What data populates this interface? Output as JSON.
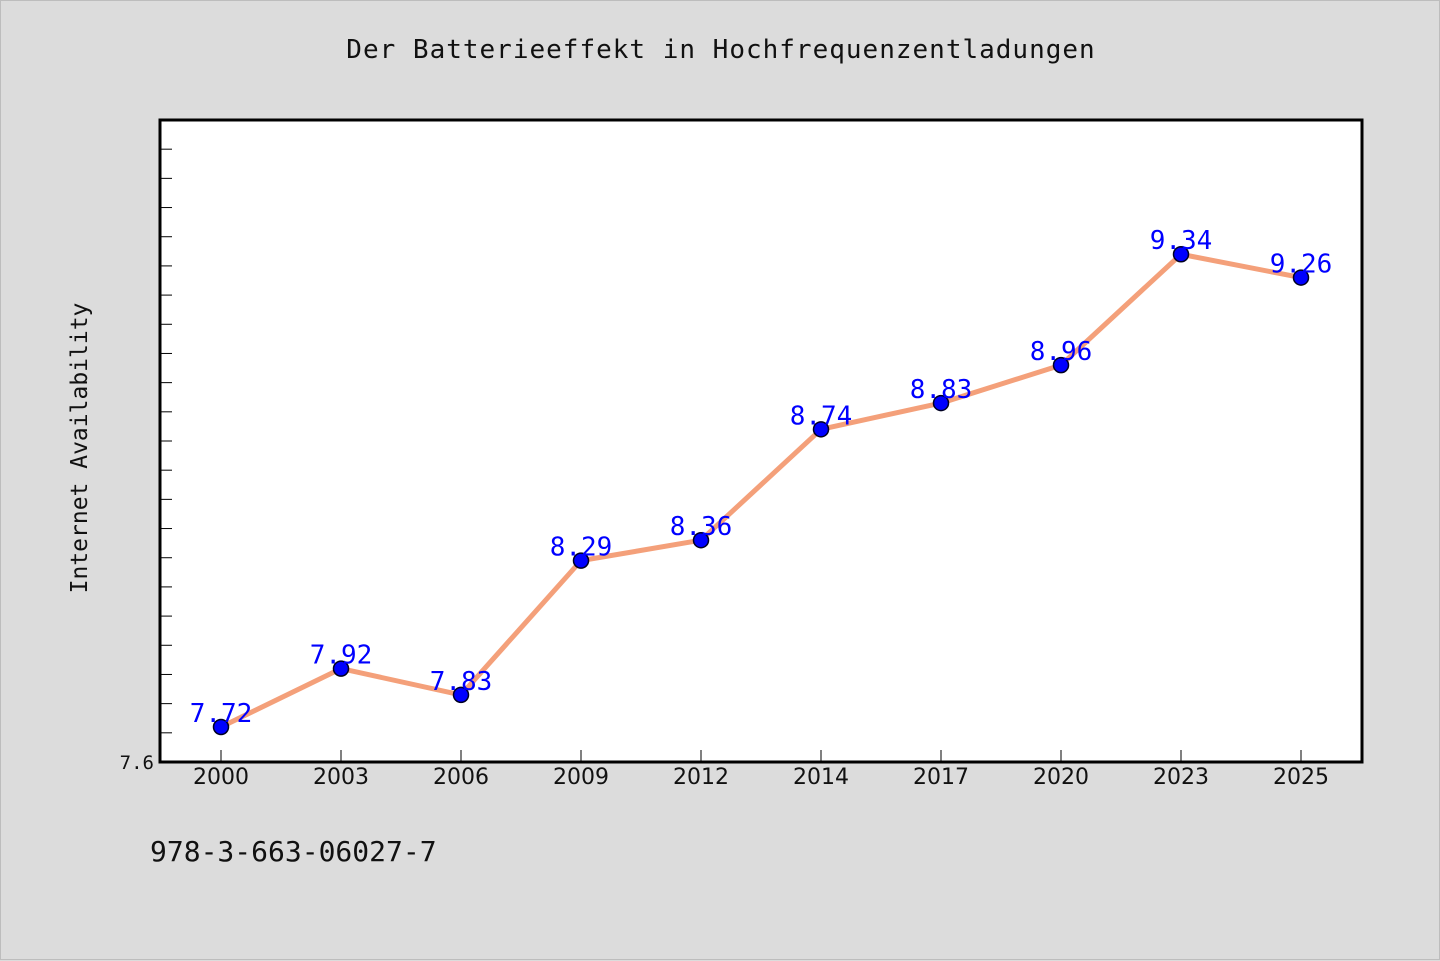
{
  "chart_data": {
    "type": "line",
    "title": "Der Batterieeffekt in Hochfrequenzentladungen",
    "xlabel": "",
    "ylabel": "Internet Availability",
    "categories": [
      "2000",
      "2003",
      "2006",
      "2009",
      "2012",
      "2014",
      "2017",
      "2020",
      "2023",
      "2025"
    ],
    "series": [
      {
        "values": [
          7.72,
          7.92,
          7.83,
          8.29,
          8.36,
          8.74,
          8.83,
          8.96,
          9.34,
          9.26
        ],
        "labels": [
          "7.72",
          "7.92",
          "7.83",
          "8.29",
          "8.36",
          "8.74",
          "8.83",
          "8.96",
          "9.34",
          "9.26"
        ]
      }
    ],
    "ylim": [
      7.6,
      9.8
    ],
    "ytick_labels": [
      "7.6"
    ],
    "grid": false,
    "line_color": "#f4a07a",
    "marker_color": "#0000ff",
    "label_color": "#0000ff"
  },
  "footer": {
    "code": "978-3-663-06027-7"
  }
}
